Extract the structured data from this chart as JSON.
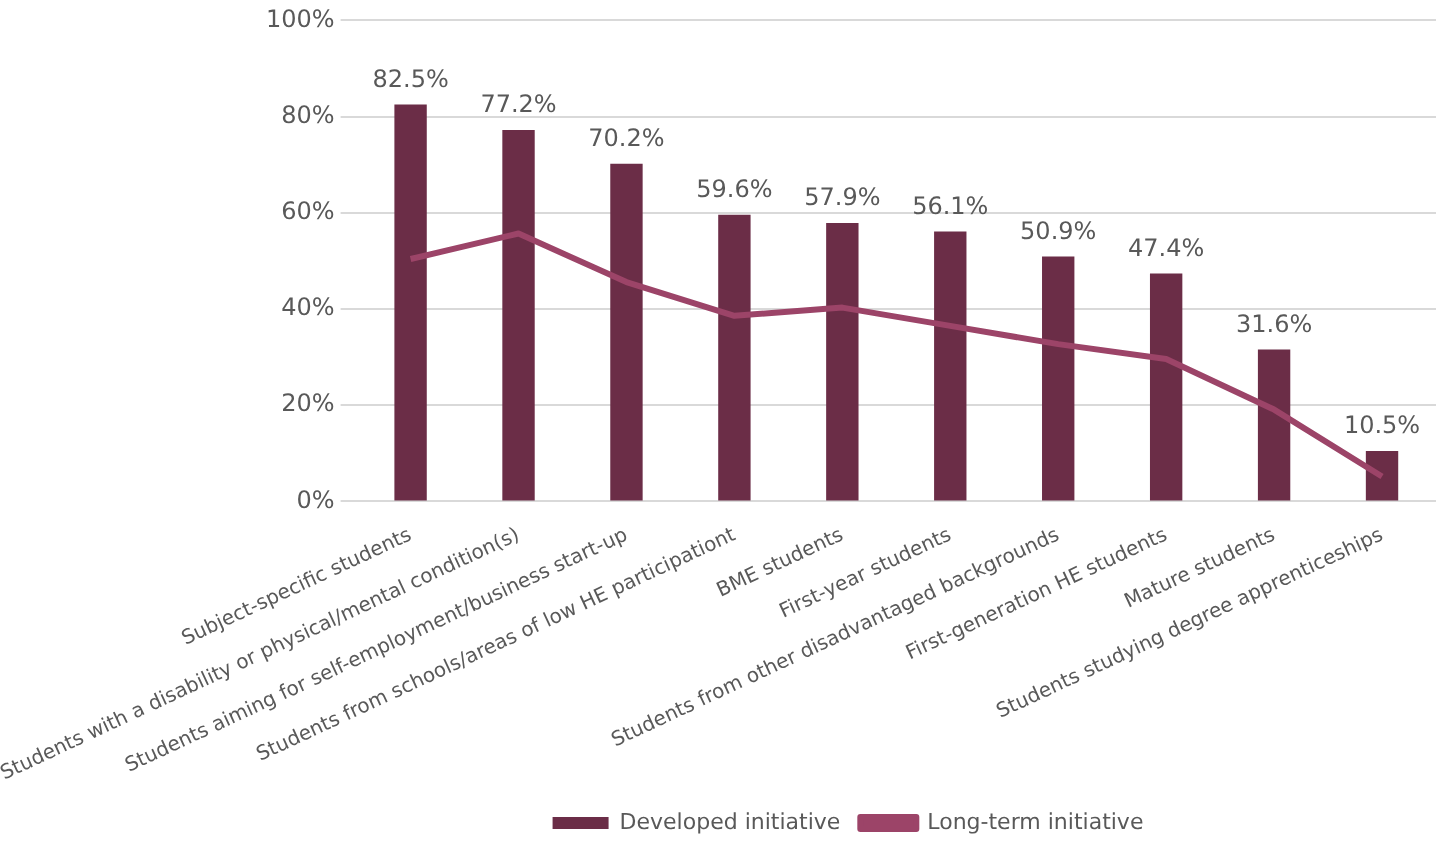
{
  "chart_data": {
    "type": "bar",
    "categories": [
      "Subject-specific students",
      "Students with a disability or physical/mental condition(s)",
      "Students aiming for self-employment/business start-up",
      "Students from schools/areas of low HE participationt",
      "BME students",
      "First-year students",
      "Students from other disadvantaged backgrounds",
      "First-generation HE students",
      "Mature students",
      "Students studying degree apprenticeships"
    ],
    "series": [
      {
        "name": "Developed initiative",
        "color": "#6b2d47",
        "values": [
          82.5,
          77.2,
          70.2,
          59.6,
          57.9,
          56.1,
          50.9,
          47.4,
          31.6,
          10.5
        ],
        "value_labels": [
          "82.5%",
          "77.2%",
          "70.2%",
          "59.6%",
          "57.9%",
          "56.1%",
          "50.9%",
          "47.4%",
          "31.6%",
          "10.5%"
        ]
      },
      {
        "name": "Long-term initiative",
        "type": "line",
        "color": "#9c4468",
        "values": [
          50.4,
          55.7,
          45.6,
          38.6,
          40.3,
          36.5,
          32.7,
          29.6,
          19.1,
          5.2
        ],
        "marker": "none"
      }
    ],
    "ylim": [
      0,
      100
    ],
    "yticks": [
      {
        "value": 0,
        "label": "0%"
      },
      {
        "value": 20,
        "label": "20%"
      },
      {
        "value": 40,
        "label": "40%"
      },
      {
        "value": 60,
        "label": "60%"
      },
      {
        "value": 80,
        "label": "80%"
      },
      {
        "value": 100,
        "label": "100%"
      }
    ],
    "grid": "y",
    "legend": "bottom"
  }
}
